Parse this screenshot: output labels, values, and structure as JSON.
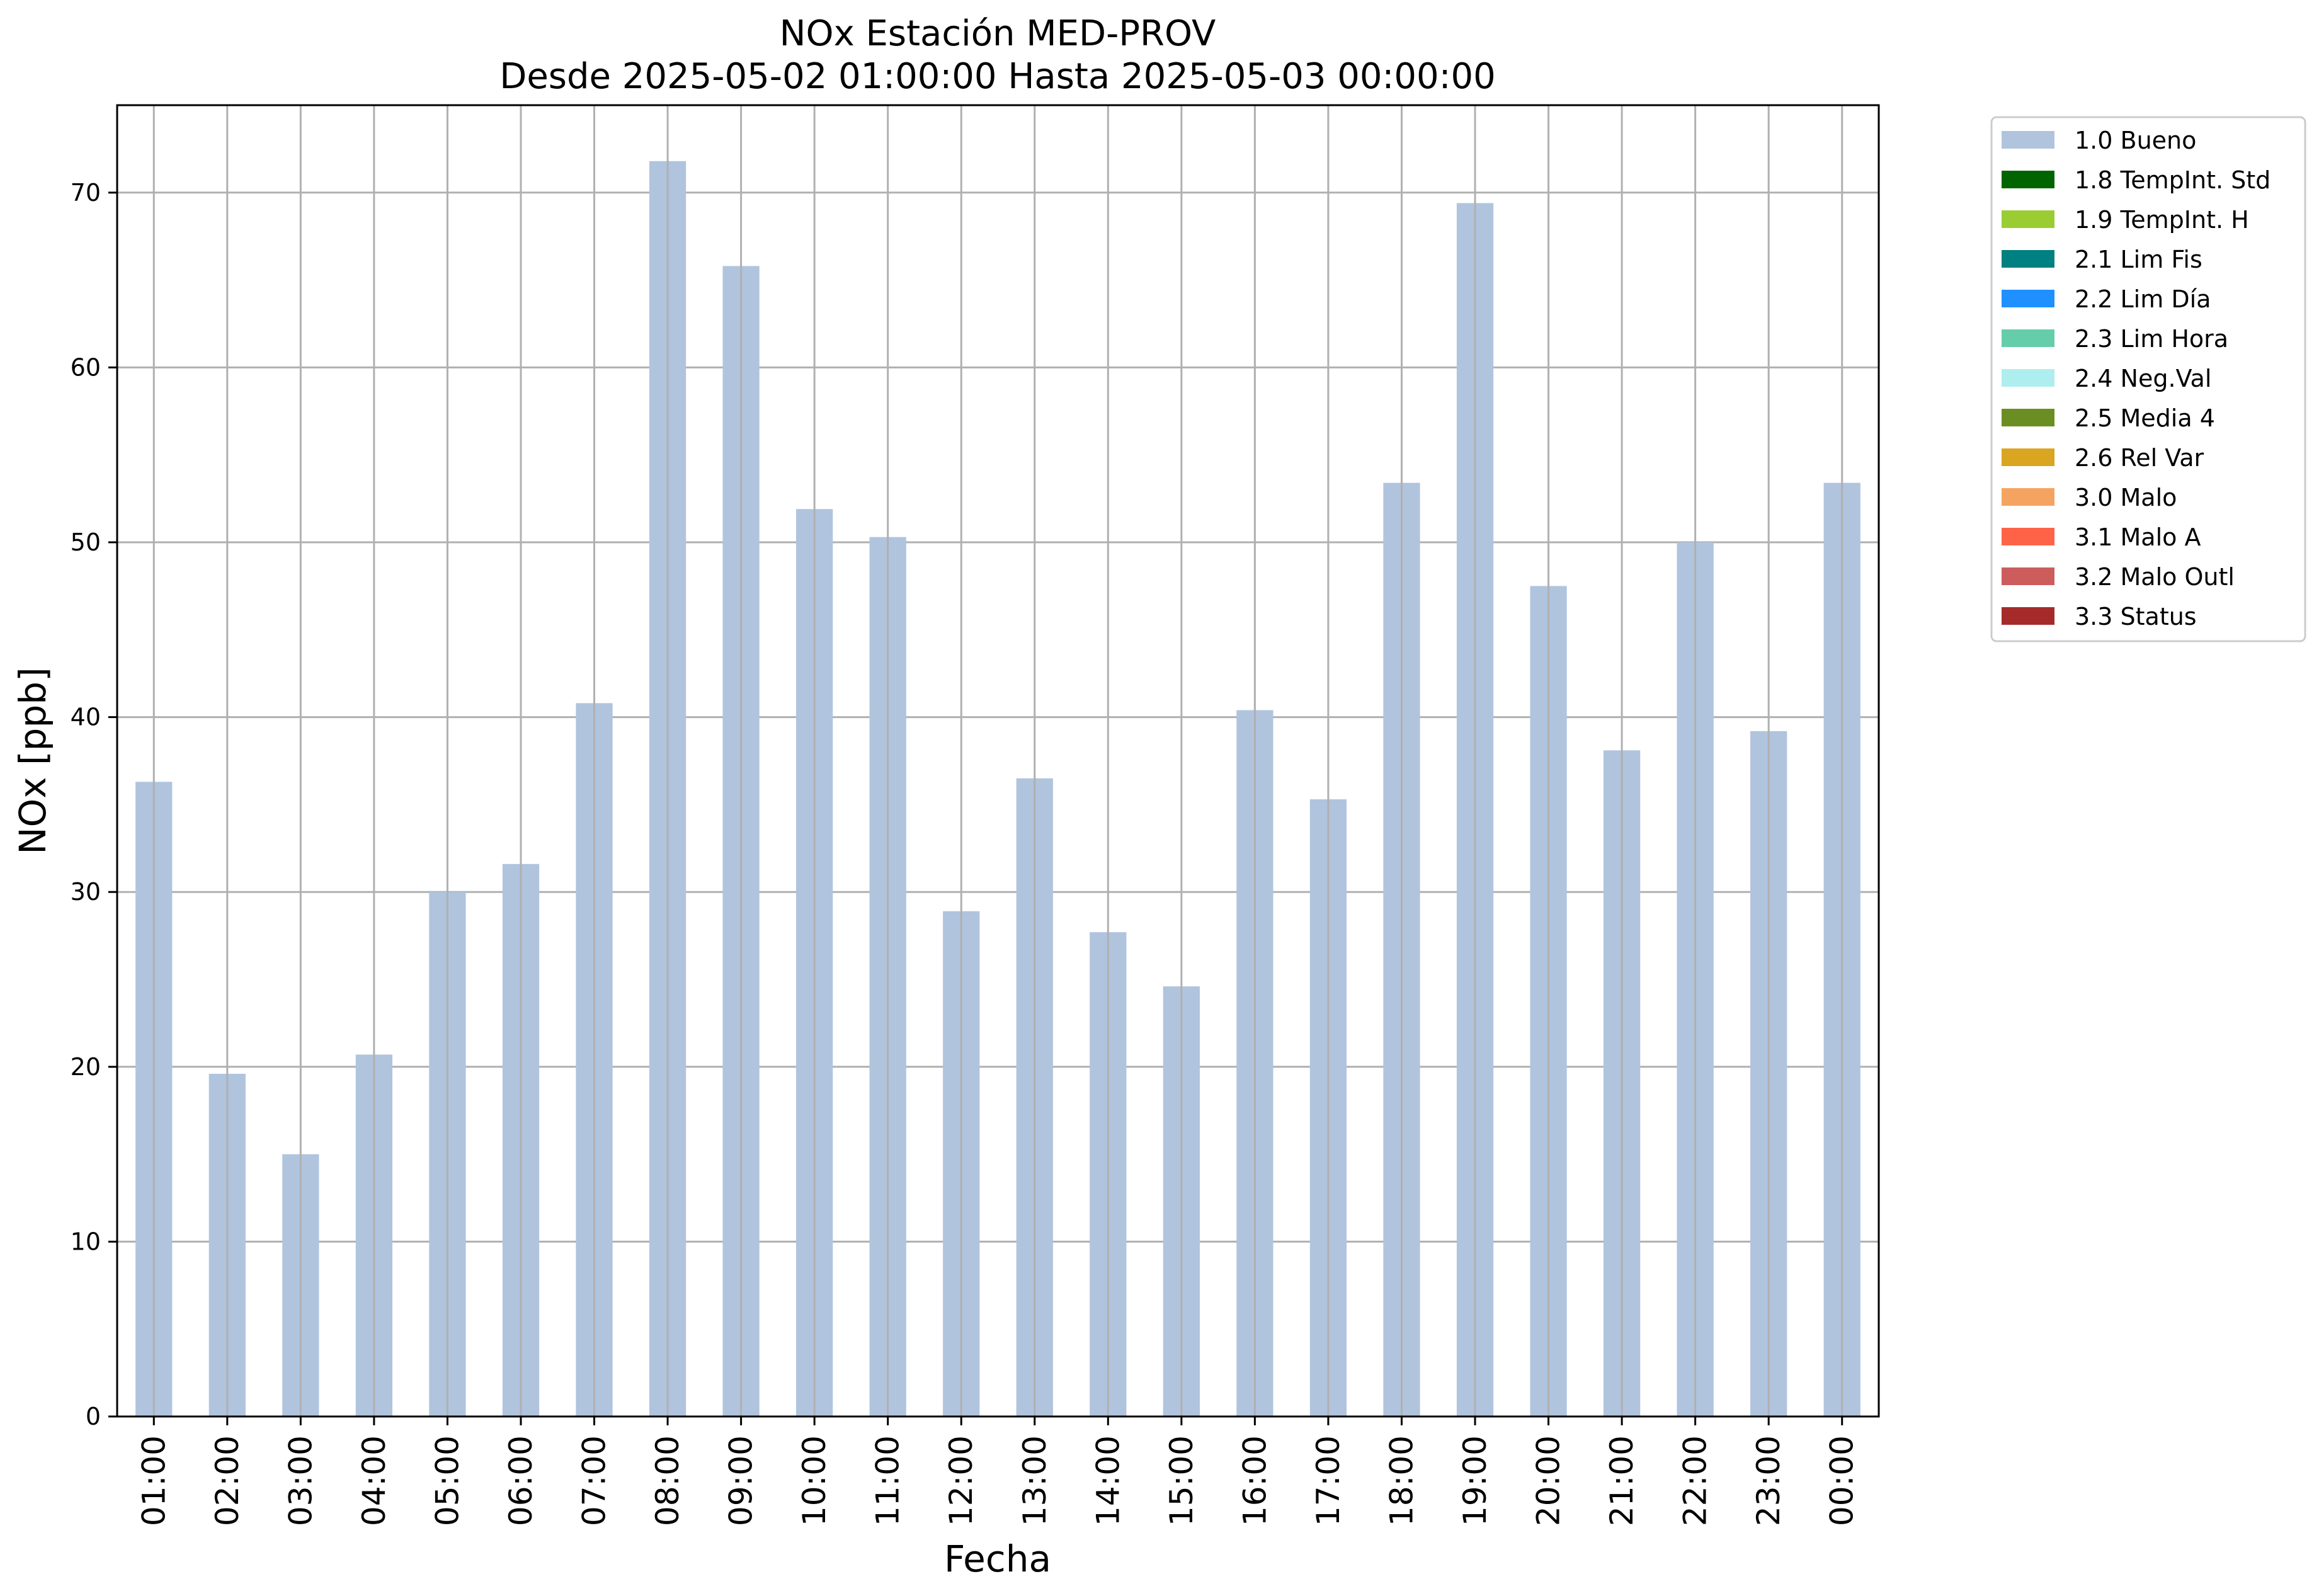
{
  "chart_data": {
    "type": "bar",
    "title": "NOx Estación MED-PROV",
    "subtitle": "Desde 2025-05-02 01:00:00 Hasta 2025-05-03 00:00:00",
    "xlabel": "Fecha",
    "ylabel": "NOx [ppb]",
    "ylim": [
      0,
      75
    ],
    "yticks": [
      0,
      10,
      20,
      30,
      40,
      50,
      60,
      70
    ],
    "grid": true,
    "legend_position": "outside-top-right",
    "categories": [
      "01:00",
      "02:00",
      "03:00",
      "04:00",
      "05:00",
      "06:00",
      "07:00",
      "08:00",
      "09:00",
      "10:00",
      "11:00",
      "12:00",
      "13:00",
      "14:00",
      "15:00",
      "16:00",
      "17:00",
      "18:00",
      "19:00",
      "20:00",
      "21:00",
      "22:00",
      "23:00",
      "00:00"
    ],
    "series": [
      {
        "name": "1.0 Bueno",
        "color": "#b0c4de",
        "values": [
          36.3,
          19.6,
          15.0,
          20.7,
          30.0,
          31.6,
          40.8,
          71.8,
          65.8,
          51.9,
          50.3,
          28.9,
          36.5,
          27.7,
          24.6,
          40.4,
          35.3,
          53.4,
          69.4,
          47.5,
          38.1,
          50.0,
          39.2,
          53.4
        ]
      }
    ],
    "legend": [
      {
        "label": "1.0 Bueno",
        "color": "#b0c4de"
      },
      {
        "label": "1.8 TempInt. Std",
        "color": "#006400"
      },
      {
        "label": "1.9 TempInt. H",
        "color": "#9acd32"
      },
      {
        "label": "2.1 Lim Fis",
        "color": "#008080"
      },
      {
        "label": "2.2 Lim Día",
        "color": "#1e90ff"
      },
      {
        "label": "2.3 Lim Hora",
        "color": "#66cdaa"
      },
      {
        "label": "2.4 Neg.Val",
        "color": "#afeeee"
      },
      {
        "label": "2.5 Media 4",
        "color": "#6b8e23"
      },
      {
        "label": "2.6 Rel Var",
        "color": "#daa520"
      },
      {
        "label": "3.0 Malo",
        "color": "#f4a460"
      },
      {
        "label": "3.1 Malo A",
        "color": "#ff6347"
      },
      {
        "label": "3.2 Malo Outl",
        "color": "#cd5c5c"
      },
      {
        "label": "3.3 Status",
        "color": "#a52a2a"
      }
    ]
  }
}
